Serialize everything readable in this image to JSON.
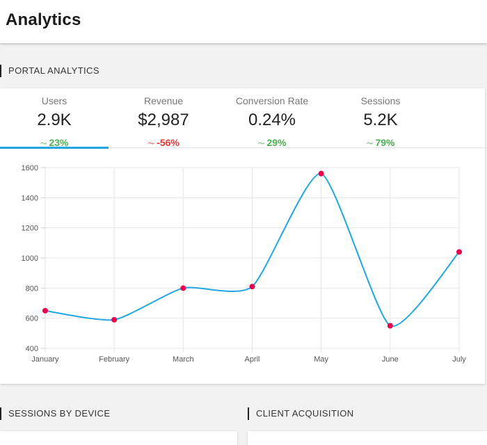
{
  "header": {
    "title": "Analytics"
  },
  "portal": {
    "heading": "PORTAL ANALYTICS"
  },
  "kpis": [
    {
      "label": "Users",
      "value": "2.9K",
      "change": "23%",
      "direction": "up",
      "active": true
    },
    {
      "label": "Revenue",
      "value": "$2,987",
      "change": "-56%",
      "direction": "down",
      "active": false
    },
    {
      "label": "Conversion Rate",
      "value": "0.24%",
      "change": "29%",
      "direction": "up",
      "active": false
    },
    {
      "label": "Sessions",
      "value": "5.2K",
      "change": "79%",
      "direction": "up",
      "active": false
    }
  ],
  "colors": {
    "accent": "#1ea7e1",
    "point": "#e8004c",
    "up": "#4caf50",
    "down": "#e53935"
  },
  "chart_data": {
    "type": "line",
    "categories": [
      "January",
      "February",
      "March",
      "April",
      "May",
      "June",
      "July"
    ],
    "values": [
      650,
      590,
      800,
      810,
      1560,
      550,
      1040
    ],
    "ylim": [
      400,
      1600
    ],
    "yticks": [
      400,
      600,
      800,
      1000,
      1200,
      1400,
      1600
    ],
    "grid": true,
    "title": "",
    "xlabel": "",
    "ylabel": ""
  },
  "bottom": {
    "left_heading": "SESSIONS BY DEVICE",
    "right_heading": "CLIENT ACQUISITION"
  }
}
